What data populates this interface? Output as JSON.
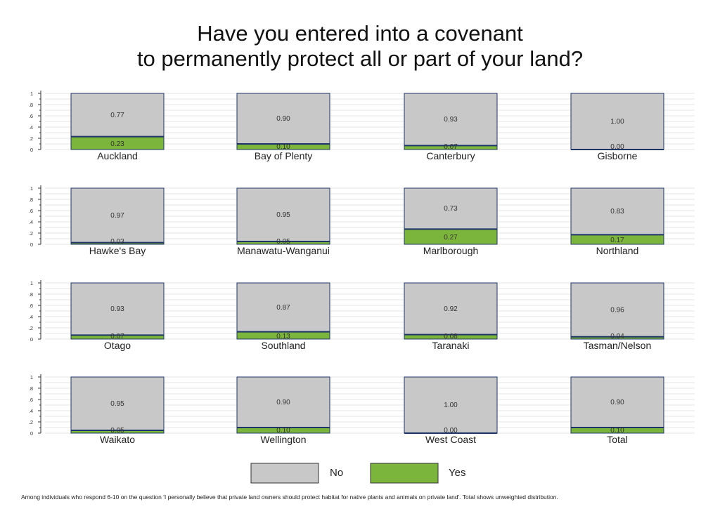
{
  "chart_data": {
    "type": "bar",
    "title": "Have you entered into a covenant\nto permanently protect all or part of your land?",
    "ylim": [
      0,
      1
    ],
    "yticks": [
      "0",
      ".2",
      ".4",
      ".6",
      ".8",
      "1"
    ],
    "minor_ticks": [
      ".1",
      ".3",
      ".5",
      ".7",
      ".9"
    ],
    "grid": true,
    "legend": {
      "position": "bottom",
      "entries": [
        {
          "name": "No",
          "color": "#c8c8c8"
        },
        {
          "name": "Yes",
          "color": "#7cb53c"
        }
      ]
    },
    "panels": [
      {
        "name": "Auckland",
        "no": 0.77,
        "yes": 0.23,
        "no_label": "0.77",
        "yes_label": "0.23"
      },
      {
        "name": "Bay of Plenty",
        "no": 0.9,
        "yes": 0.1,
        "no_label": "0.90",
        "yes_label": "0.10"
      },
      {
        "name": "Canterbury",
        "no": 0.93,
        "yes": 0.07,
        "no_label": "0.93",
        "yes_label": "0.07"
      },
      {
        "name": "Gisborne",
        "no": 1.0,
        "yes": 0.0,
        "no_label": "1.00",
        "yes_label": "0.00"
      },
      {
        "name": "Hawke's Bay",
        "no": 0.97,
        "yes": 0.03,
        "no_label": "0.97",
        "yes_label": "0.03"
      },
      {
        "name": "Manawatu-Wanganui",
        "no": 0.95,
        "yes": 0.05,
        "no_label": "0.95",
        "yes_label": "0.05"
      },
      {
        "name": "Marlborough",
        "no": 0.73,
        "yes": 0.27,
        "no_label": "0.73",
        "yes_label": "0.27"
      },
      {
        "name": "Northland",
        "no": 0.83,
        "yes": 0.17,
        "no_label": "0.83",
        "yes_label": "0.17"
      },
      {
        "name": "Otago",
        "no": 0.93,
        "yes": 0.07,
        "no_label": "0.93",
        "yes_label": "0.07"
      },
      {
        "name": "Southland",
        "no": 0.87,
        "yes": 0.13,
        "no_label": "0.87",
        "yes_label": "0.13"
      },
      {
        "name": "Taranaki",
        "no": 0.92,
        "yes": 0.08,
        "no_label": "0.92",
        "yes_label": "0.08"
      },
      {
        "name": "Tasman/Nelson",
        "no": 0.96,
        "yes": 0.04,
        "no_label": "0.96",
        "yes_label": "0.04"
      },
      {
        "name": "Waikato",
        "no": 0.95,
        "yes": 0.05,
        "no_label": "0.95",
        "yes_label": "0.05"
      },
      {
        "name": "Wellington",
        "no": 0.9,
        "yes": 0.1,
        "no_label": "0.90",
        "yes_label": "0.10"
      },
      {
        "name": "West Coast",
        "no": 1.0,
        "yes": 0.0,
        "no_label": "1.00",
        "yes_label": "0.00"
      },
      {
        "name": "Total",
        "no": 0.9,
        "yes": 0.1,
        "no_label": "0.90",
        "yes_label": "0.10"
      }
    ],
    "footnote": "Among individuals who respond 6-10 on the question 'I personally believe that private land owners should protect habitat for native plants and animals on private land'. Total shows unweighted distribution."
  },
  "colors": {
    "no": "#c8c8c8",
    "yes": "#7cb53c",
    "bar_border": "#1f3567",
    "grid": "#e6e6e6"
  }
}
